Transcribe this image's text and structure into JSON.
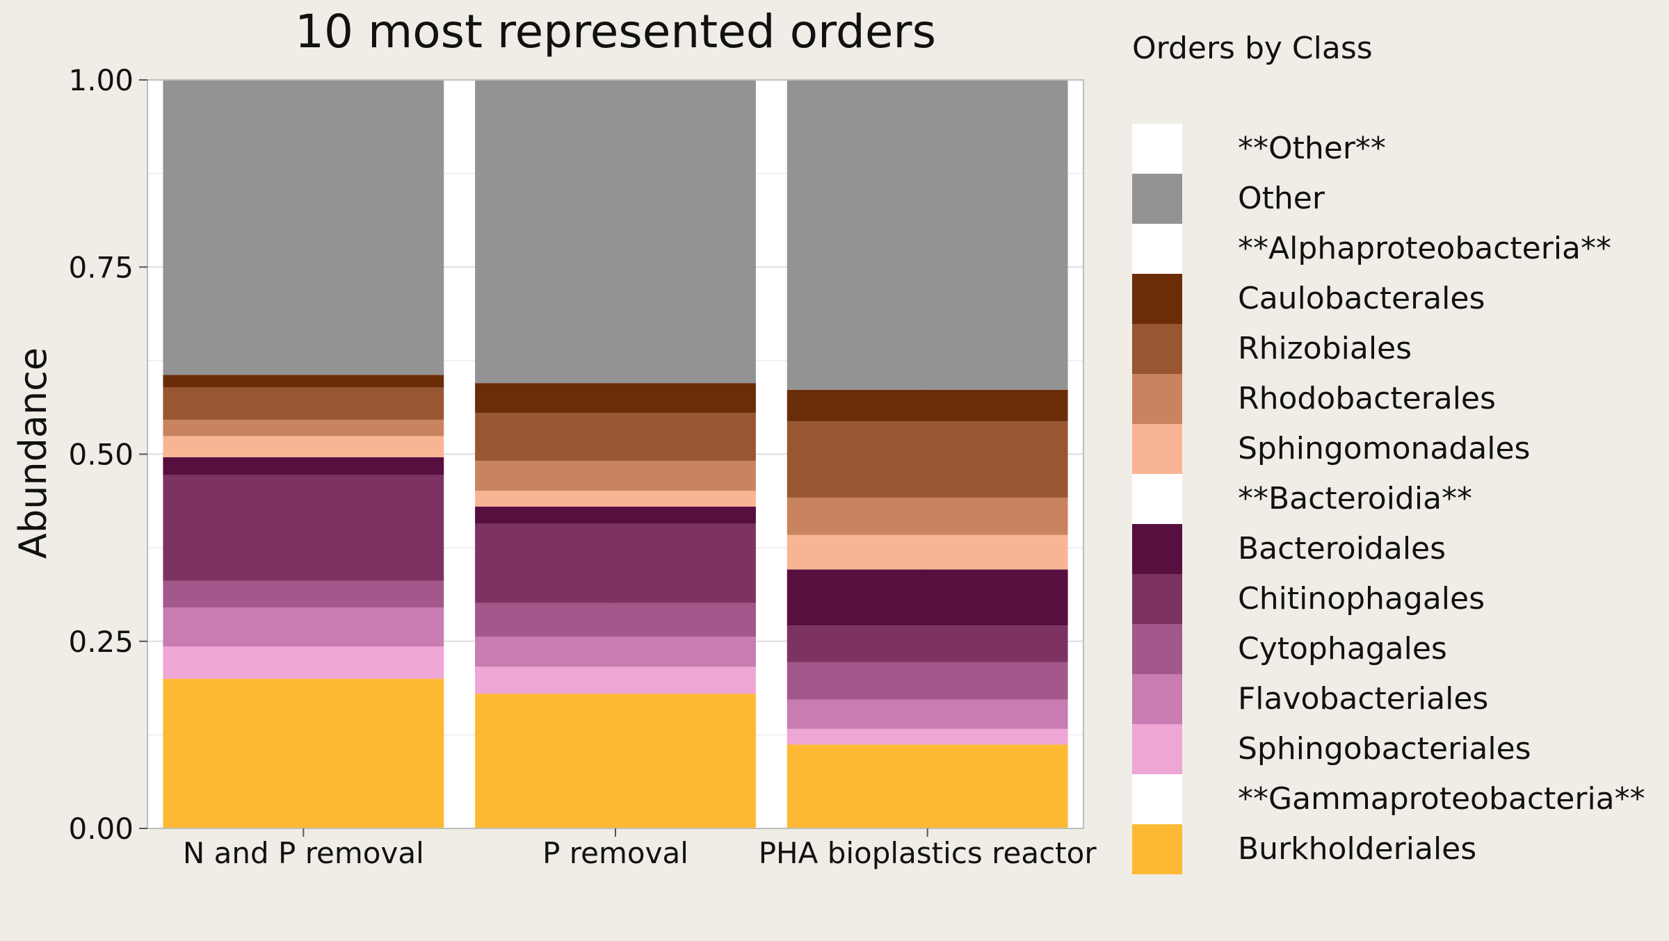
{
  "chart_data": {
    "type": "bar",
    "stacked": true,
    "title": "10 most represented orders",
    "xlabel": "",
    "ylabel": "Abundance",
    "ylim": [
      0,
      1
    ],
    "yticks": [
      "0.00",
      "0.25",
      "0.50",
      "0.75",
      "1.00"
    ],
    "ytick_values": [
      0,
      0.25,
      0.5,
      0.75,
      1
    ],
    "grid": true,
    "legend_position": "right",
    "legend_title": "Orders by Class",
    "categories": [
      "N and P removal",
      "P removal",
      "PHA bioplastics reactor"
    ],
    "series": [
      {
        "name": "Burkholderiales",
        "color": "#fdb933",
        "values": [
          0.2,
          0.18,
          0.112
        ]
      },
      {
        "name": "Sphingobacteriales",
        "color": "#eea6d5",
        "values": [
          0.043,
          0.036,
          0.021
        ]
      },
      {
        "name": "Flavobacteriales",
        "color": "#c87cb1",
        "values": [
          0.052,
          0.04,
          0.039
        ]
      },
      {
        "name": "Cytophagales",
        "color": "#a2588a",
        "values": [
          0.036,
          0.045,
          0.05
        ]
      },
      {
        "name": "Chitinophagales",
        "color": "#7c3362",
        "values": [
          0.141,
          0.106,
          0.049
        ]
      },
      {
        "name": "Bacteroidales",
        "color": "#560f3f",
        "values": [
          0.024,
          0.023,
          0.075
        ]
      },
      {
        "name": "Sphingomonadales",
        "color": "#f9b593",
        "values": [
          0.028,
          0.021,
          0.046
        ]
      },
      {
        "name": "Rhodobacterales",
        "color": "#c9845f",
        "values": [
          0.022,
          0.04,
          0.05
        ]
      },
      {
        "name": "Rhizobiales",
        "color": "#985732",
        "values": [
          0.043,
          0.064,
          0.102
        ]
      },
      {
        "name": "Caulobacterales",
        "color": "#6b2c08",
        "values": [
          0.017,
          0.04,
          0.042
        ]
      },
      {
        "name": "Other",
        "color": "#939393",
        "values": [
          0.394,
          0.405,
          0.414
        ]
      }
    ],
    "legend": [
      {
        "label": "**Other**",
        "color": "#ffffff"
      },
      {
        "label": "Other",
        "color": "#939393"
      },
      {
        "label": "**Alphaproteobacteria**",
        "color": "#ffffff"
      },
      {
        "label": "Caulobacterales",
        "color": "#6b2c08"
      },
      {
        "label": "Rhizobiales",
        "color": "#985732"
      },
      {
        "label": "Rhodobacterales",
        "color": "#c9845f"
      },
      {
        "label": "Sphingomonadales",
        "color": "#f9b593"
      },
      {
        "label": "**Bacteroidia**",
        "color": "#ffffff"
      },
      {
        "label": "Bacteroidales",
        "color": "#560f3f"
      },
      {
        "label": "Chitinophagales",
        "color": "#7c3362"
      },
      {
        "label": "Cytophagales",
        "color": "#a2588a"
      },
      {
        "label": "Flavobacteriales",
        "color": "#c87cb1"
      },
      {
        "label": "Sphingobacteriales",
        "color": "#eea6d5"
      },
      {
        "label": "**Gammaproteobacteria**",
        "color": "#ffffff"
      },
      {
        "label": "Burkholderiales",
        "color": "#fdb933"
      }
    ]
  }
}
